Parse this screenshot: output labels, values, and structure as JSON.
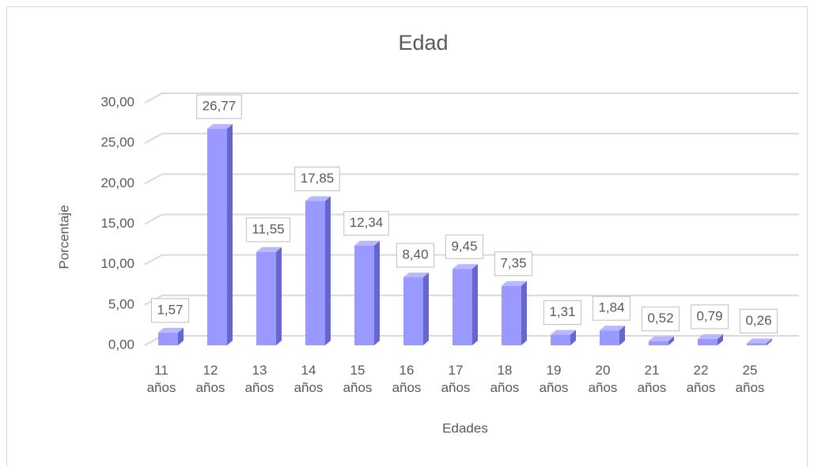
{
  "chart_data": {
    "type": "bar3d",
    "title": "Edad",
    "x_label": "Edades",
    "y_label": "Porcentaje",
    "categories": [
      "11 años",
      "12 años",
      "13 años",
      "14 años",
      "15 años",
      "16 años",
      "17 años",
      "18 años",
      "19 años",
      "20 años",
      "21 años",
      "22 años",
      "25 años"
    ],
    "values": [
      1.57,
      26.77,
      11.55,
      17.85,
      12.34,
      8.4,
      9.45,
      7.35,
      1.31,
      1.84,
      0.52,
      0.79,
      0.26
    ],
    "value_labels": [
      "1,57",
      "26,77",
      "11,55",
      "17,85",
      "12,34",
      "8,40",
      "9,45",
      "7,35",
      "1,31",
      "1,84",
      "0,52",
      "0,79",
      "0,26"
    ],
    "color": "#9999ff",
    "ylim": [
      0,
      30
    ],
    "yticks": [
      {
        "value": 0,
        "label": "0,00"
      },
      {
        "value": 5,
        "label": "5,00"
      },
      {
        "value": 10,
        "label": "10,00"
      },
      {
        "value": 15,
        "label": "15,00"
      },
      {
        "value": 20,
        "label": "20,00"
      },
      {
        "value": 25,
        "label": "25,00"
      },
      {
        "value": 30,
        "label": "30,00"
      }
    ],
    "grid": true
  }
}
